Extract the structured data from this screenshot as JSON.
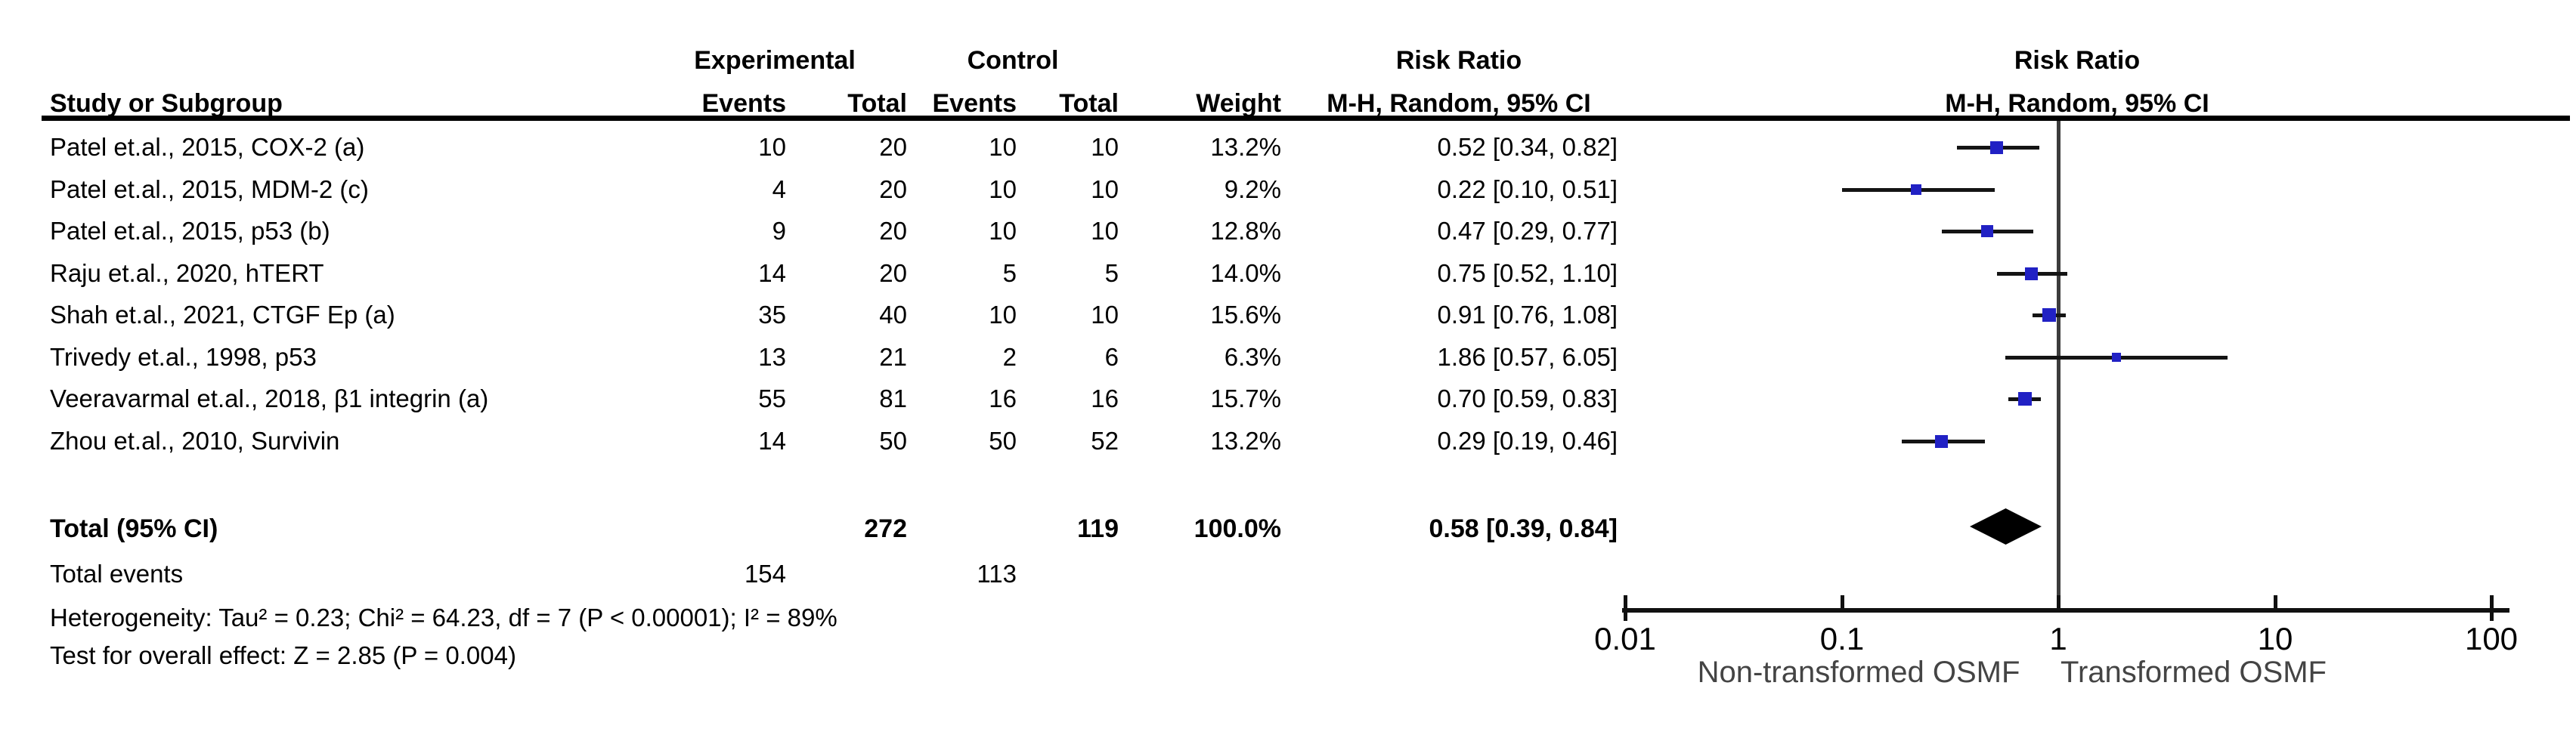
{
  "table": {
    "header_top": {
      "experimental": "Experimental",
      "control": "Control",
      "risk_ratio": "Risk Ratio"
    },
    "header_cols": {
      "study": "Study or Subgroup",
      "events": "Events",
      "total": "Total",
      "weight": "Weight",
      "mh_ci": "M-H, Random, 95% CI"
    },
    "plot_header": {
      "risk_ratio": "Risk Ratio",
      "mh_ci": "M-H, Random, 95% CI"
    }
  },
  "footer": {
    "heterogeneity": "Heterogeneity: Tau² = 0.23; Chi² = 64.23, df = 7 (P < 0.00001); I² = 89%",
    "overall_effect": "Test for overall effect: Z = 2.85 (P = 0.004)"
  },
  "colors": {
    "marker_blue": "#2121c4",
    "ci_line": "#141414",
    "diamond": "#000000",
    "center_line": "#3c3c3c"
  },
  "chart_data": {
    "type": "scatter",
    "variant": "forest-plot",
    "effect_measure": "Risk Ratio",
    "method_label": "M-H, Random, 95% CI",
    "x_axis": {
      "scale": "log10",
      "xlim": [
        0.01,
        100
      ],
      "ticks": [
        0.01,
        0.1,
        1,
        10,
        100
      ],
      "tick_labels": [
        "0.01",
        "0.1",
        "1",
        "10",
        "100"
      ],
      "caption_left": "Non-transformed OSMF",
      "caption_right": "Transformed OSMF"
    },
    "studies": [
      {
        "name": "Patel et.al., 2015, COX-2 (a)",
        "exp_events": 10,
        "exp_total": 20,
        "ctrl_events": 10,
        "ctrl_total": 10,
        "weight": "13.2%",
        "weight_pct": 13.2,
        "rr": 0.52,
        "ci_low": 0.34,
        "ci_high": 0.82,
        "ci_label": "0.52 [0.34, 0.82]"
      },
      {
        "name": "Patel et.al., 2015, MDM-2 (c)",
        "exp_events": 4,
        "exp_total": 20,
        "ctrl_events": 10,
        "ctrl_total": 10,
        "weight": "9.2%",
        "weight_pct": 9.2,
        "rr": 0.22,
        "ci_low": 0.1,
        "ci_high": 0.51,
        "ci_label": "0.22 [0.10, 0.51]"
      },
      {
        "name": "Patel et.al., 2015, p53 (b)",
        "exp_events": 9,
        "exp_total": 20,
        "ctrl_events": 10,
        "ctrl_total": 10,
        "weight": "12.8%",
        "weight_pct": 12.8,
        "rr": 0.47,
        "ci_low": 0.29,
        "ci_high": 0.77,
        "ci_label": "0.47 [0.29, 0.77]"
      },
      {
        "name": "Raju et.al., 2020, hTERT",
        "exp_events": 14,
        "exp_total": 20,
        "ctrl_events": 5,
        "ctrl_total": 5,
        "weight": "14.0%",
        "weight_pct": 14.0,
        "rr": 0.75,
        "ci_low": 0.52,
        "ci_high": 1.1,
        "ci_label": "0.75 [0.52, 1.10]"
      },
      {
        "name": "Shah et.al., 2021, CTGF Ep (a)",
        "exp_events": 35,
        "exp_total": 40,
        "ctrl_events": 10,
        "ctrl_total": 10,
        "weight": "15.6%",
        "weight_pct": 15.6,
        "rr": 0.91,
        "ci_low": 0.76,
        "ci_high": 1.08,
        "ci_label": "0.91 [0.76, 1.08]"
      },
      {
        "name": "Trivedy et.al., 1998, p53",
        "exp_events": 13,
        "exp_total": 21,
        "ctrl_events": 2,
        "ctrl_total": 6,
        "weight": "6.3%",
        "weight_pct": 6.3,
        "rr": 1.86,
        "ci_low": 0.57,
        "ci_high": 6.05,
        "ci_label": "1.86 [0.57, 6.05]"
      },
      {
        "name": "Veeravarmal et.al., 2018, β1 integrin (a)",
        "exp_events": 55,
        "exp_total": 81,
        "ctrl_events": 16,
        "ctrl_total": 16,
        "weight": "15.7%",
        "weight_pct": 15.7,
        "rr": 0.7,
        "ci_low": 0.59,
        "ci_high": 0.83,
        "ci_label": "0.70 [0.59, 0.83]"
      },
      {
        "name": "Zhou et.al., 2010, Survivin",
        "exp_events": 14,
        "exp_total": 50,
        "ctrl_events": 50,
        "ctrl_total": 52,
        "weight": "13.2%",
        "weight_pct": 13.2,
        "rr": 0.29,
        "ci_low": 0.19,
        "ci_high": 0.46,
        "ci_label": "0.29 [0.19, 0.46]"
      }
    ],
    "total": {
      "name": "Total (95% CI)",
      "exp_total": 272,
      "ctrl_total": 119,
      "weight": "100.0%",
      "rr": 0.58,
      "ci_low": 0.39,
      "ci_high": 0.84,
      "ci_label": "0.58 [0.39, 0.84]"
    },
    "total_events": {
      "name": "Total events",
      "exp_events": 154,
      "ctrl_events": 113
    }
  }
}
